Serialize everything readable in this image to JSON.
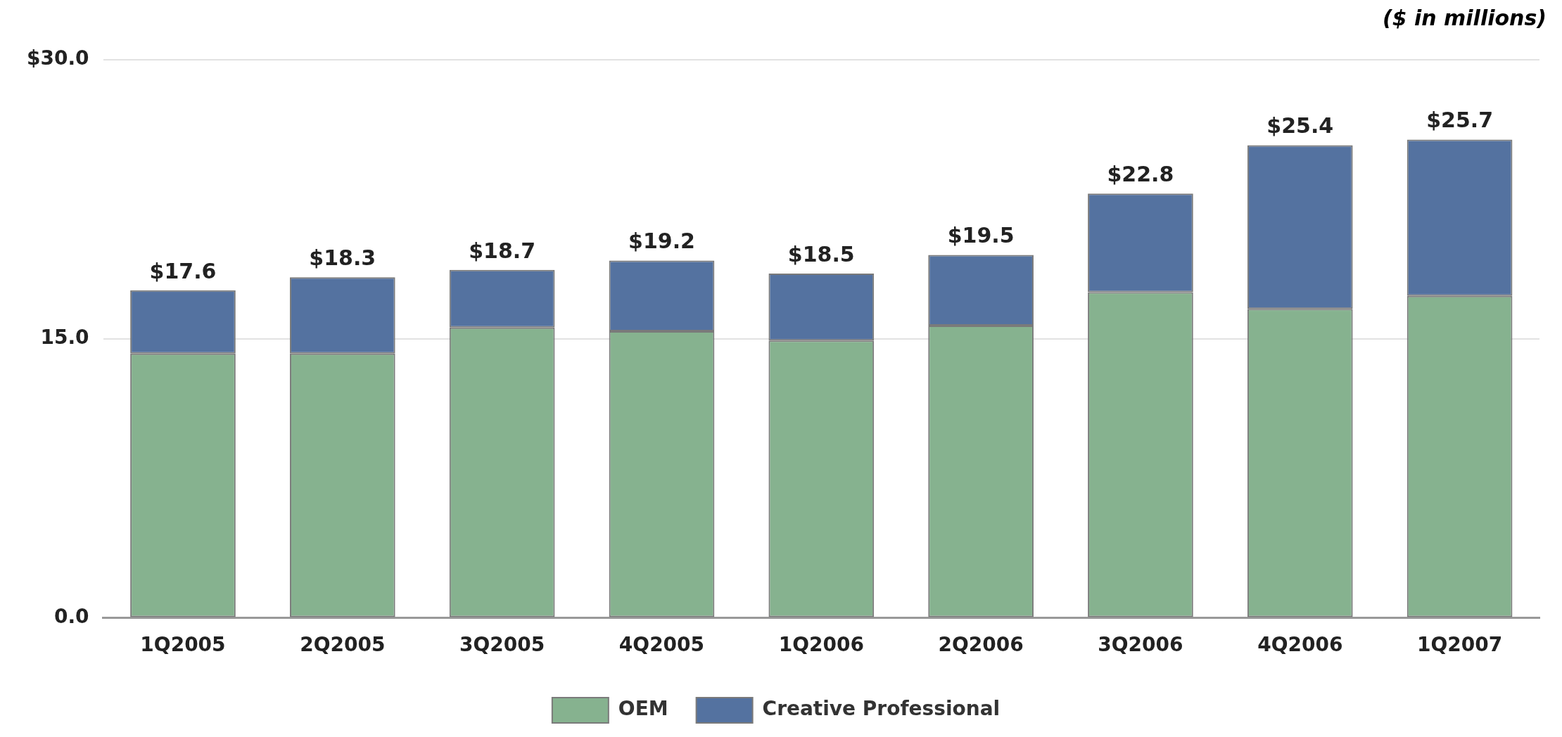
{
  "chart_data": {
    "type": "bar",
    "stacked": true,
    "annotations": [
      "($ in millions)"
    ],
    "categories": [
      "1Q2005",
      "2Q2005",
      "3Q2005",
      "4Q2005",
      "1Q2006",
      "2Q2006",
      "3Q2006",
      "4Q2006",
      "1Q2007"
    ],
    "series": [
      {
        "name": "OEM",
        "color": "#86b28f",
        "values": [
          14.2,
          14.2,
          15.6,
          15.4,
          14.9,
          15.7,
          17.5,
          16.6,
          17.3
        ]
      },
      {
        "name": "Creative Professional",
        "color": "#5472a0",
        "values": [
          3.4,
          4.1,
          3.1,
          3.8,
          3.6,
          3.8,
          5.3,
          8.8,
          8.4
        ]
      }
    ],
    "totals": [
      "$17.6",
      "$18.3",
      "$18.7",
      "$19.2",
      "$18.5",
      "$19.5",
      "$22.8",
      "$25.4",
      "$25.7"
    ],
    "ylim": [
      0,
      30
    ],
    "yticks": [
      {
        "value": 0,
        "label": "0.0"
      },
      {
        "value": 15,
        "label": "15.0"
      },
      {
        "value": 30,
        "label": "$30.0"
      }
    ],
    "grid": "y",
    "legend": "bottom"
  }
}
